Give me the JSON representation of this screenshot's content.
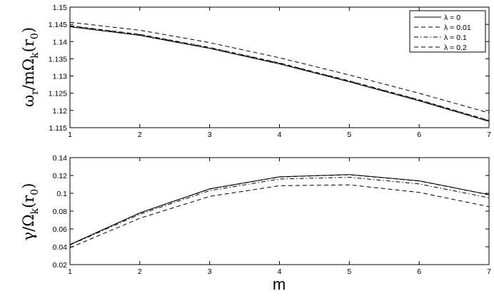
{
  "chart_data": [
    {
      "type": "line",
      "x": [
        1,
        2,
        3,
        4,
        5,
        6,
        7
      ],
      "ylabel_main": "ω",
      "ylabel_sub1": "r",
      "ylabel_mid": "/mΩ",
      "ylabel_sub2": "k",
      "ylabel_end": "(r",
      "ylabel_sub3": "0",
      "ylabel_close": ")",
      "xlim": [
        1,
        7
      ],
      "ylim": [
        1.115,
        1.15
      ],
      "xticks": [
        "1",
        "2",
        "3",
        "4",
        "5",
        "6",
        "7"
      ],
      "yticks": [
        "1.115",
        "1.12",
        "1.125",
        "1.13",
        "1.135",
        "1.14",
        "1.145",
        "1.15"
      ],
      "ytick_values": [
        1.115,
        1.12,
        1.125,
        1.13,
        1.135,
        1.14,
        1.145,
        1.15
      ],
      "legend_position": "top-right",
      "series": [
        {
          "name": "λ = 0",
          "style": "solid",
          "values": [
            1.1443,
            1.1418,
            1.138,
            1.1335,
            1.1283,
            1.1228,
            1.1168
          ]
        },
        {
          "name": "λ = 0.01",
          "style": "dashed",
          "values": [
            1.1446,
            1.1421,
            1.1383,
            1.1338,
            1.1286,
            1.1231,
            1.1171
          ]
        },
        {
          "name": "λ = 0.1",
          "style": "dashdot",
          "values": [
            1.1445,
            1.142,
            1.1382,
            1.1337,
            1.1285,
            1.123,
            1.117
          ]
        },
        {
          "name": "λ = 0.2",
          "style": "dashed",
          "values": [
            1.1456,
            1.1433,
            1.1397,
            1.1353,
            1.1303,
            1.125,
            1.1193
          ]
        }
      ]
    },
    {
      "type": "line",
      "x": [
        1,
        2,
        3,
        4,
        5,
        6,
        7
      ],
      "xlabel": "m",
      "ylabel_main": "γ/Ω",
      "ylabel_sub2": "k",
      "ylabel_end": "(r",
      "ylabel_sub3": "0",
      "ylabel_close": ")",
      "xlim": [
        1,
        7
      ],
      "ylim": [
        0.02,
        0.14
      ],
      "xticks": [
        "1",
        "2",
        "3",
        "4",
        "5",
        "6",
        "7"
      ],
      "yticks": [
        "0.02",
        "0.04",
        "0.06",
        "0.08",
        "0.1",
        "0.12",
        "0.14"
      ],
      "ytick_values": [
        0.02,
        0.04,
        0.06,
        0.08,
        0.1,
        0.12,
        0.14
      ],
      "series": [
        {
          "name": "λ = 0",
          "style": "solid",
          "values": [
            0.0425,
            0.078,
            0.105,
            0.1185,
            0.121,
            0.114,
            0.0985
          ]
        },
        {
          "name": "λ = 0.01",
          "style": "dashed",
          "values": [
            0.0424,
            0.0778,
            0.1048,
            0.1183,
            0.1208,
            0.1138,
            0.0983
          ]
        },
        {
          "name": "λ = 0.1",
          "style": "dashdot",
          "values": [
            0.042,
            0.0765,
            0.103,
            0.116,
            0.118,
            0.1105,
            0.095
          ]
        },
        {
          "name": "λ = 0.2",
          "style": "dashed",
          "values": [
            0.039,
            0.072,
            0.0965,
            0.1085,
            0.1095,
            0.101,
            0.085
          ]
        }
      ]
    }
  ]
}
